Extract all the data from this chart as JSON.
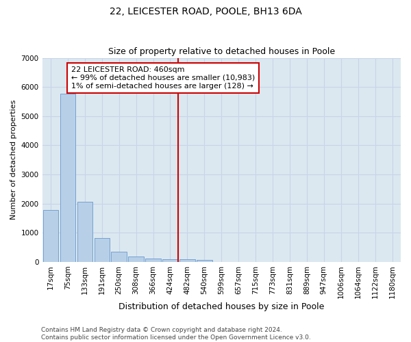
{
  "title1": "22, LEICESTER ROAD, POOLE, BH13 6DA",
  "title2": "Size of property relative to detached houses in Poole",
  "xlabel": "Distribution of detached houses by size in Poole",
  "ylabel": "Number of detached properties",
  "bar_labels": [
    "17sqm",
    "75sqm",
    "133sqm",
    "191sqm",
    "250sqm",
    "308sqm",
    "366sqm",
    "424sqm",
    "482sqm",
    "540sqm",
    "599sqm",
    "657sqm",
    "715sqm",
    "773sqm",
    "831sqm",
    "889sqm",
    "947sqm",
    "1006sqm",
    "1064sqm",
    "1122sqm",
    "1180sqm"
  ],
  "bar_values": [
    1780,
    5780,
    2060,
    820,
    340,
    185,
    110,
    100,
    80,
    60,
    0,
    0,
    0,
    0,
    0,
    0,
    0,
    0,
    0,
    0,
    0
  ],
  "bar_color": "#b8cfe8",
  "bar_edge_color": "#6699cc",
  "vline_color": "#cc0000",
  "annotation_text": "22 LEICESTER ROAD: 460sqm\n← 99% of detached houses are smaller (10,983)\n1% of semi-detached houses are larger (128) →",
  "annotation_box_color": "#ffffff",
  "annotation_box_edge": "#cc0000",
  "ylim": [
    0,
    7000
  ],
  "yticks": [
    0,
    1000,
    2000,
    3000,
    4000,
    5000,
    6000,
    7000
  ],
  "grid_color": "#c8d4e8",
  "background_color": "#dce8f0",
  "footer_text": "Contains HM Land Registry data © Crown copyright and database right 2024.\nContains public sector information licensed under the Open Government Licence v3.0.",
  "title1_fontsize": 10,
  "title2_fontsize": 9,
  "xlabel_fontsize": 9,
  "ylabel_fontsize": 8,
  "tick_fontsize": 7.5,
  "annotation_fontsize": 8,
  "footer_fontsize": 6.5
}
